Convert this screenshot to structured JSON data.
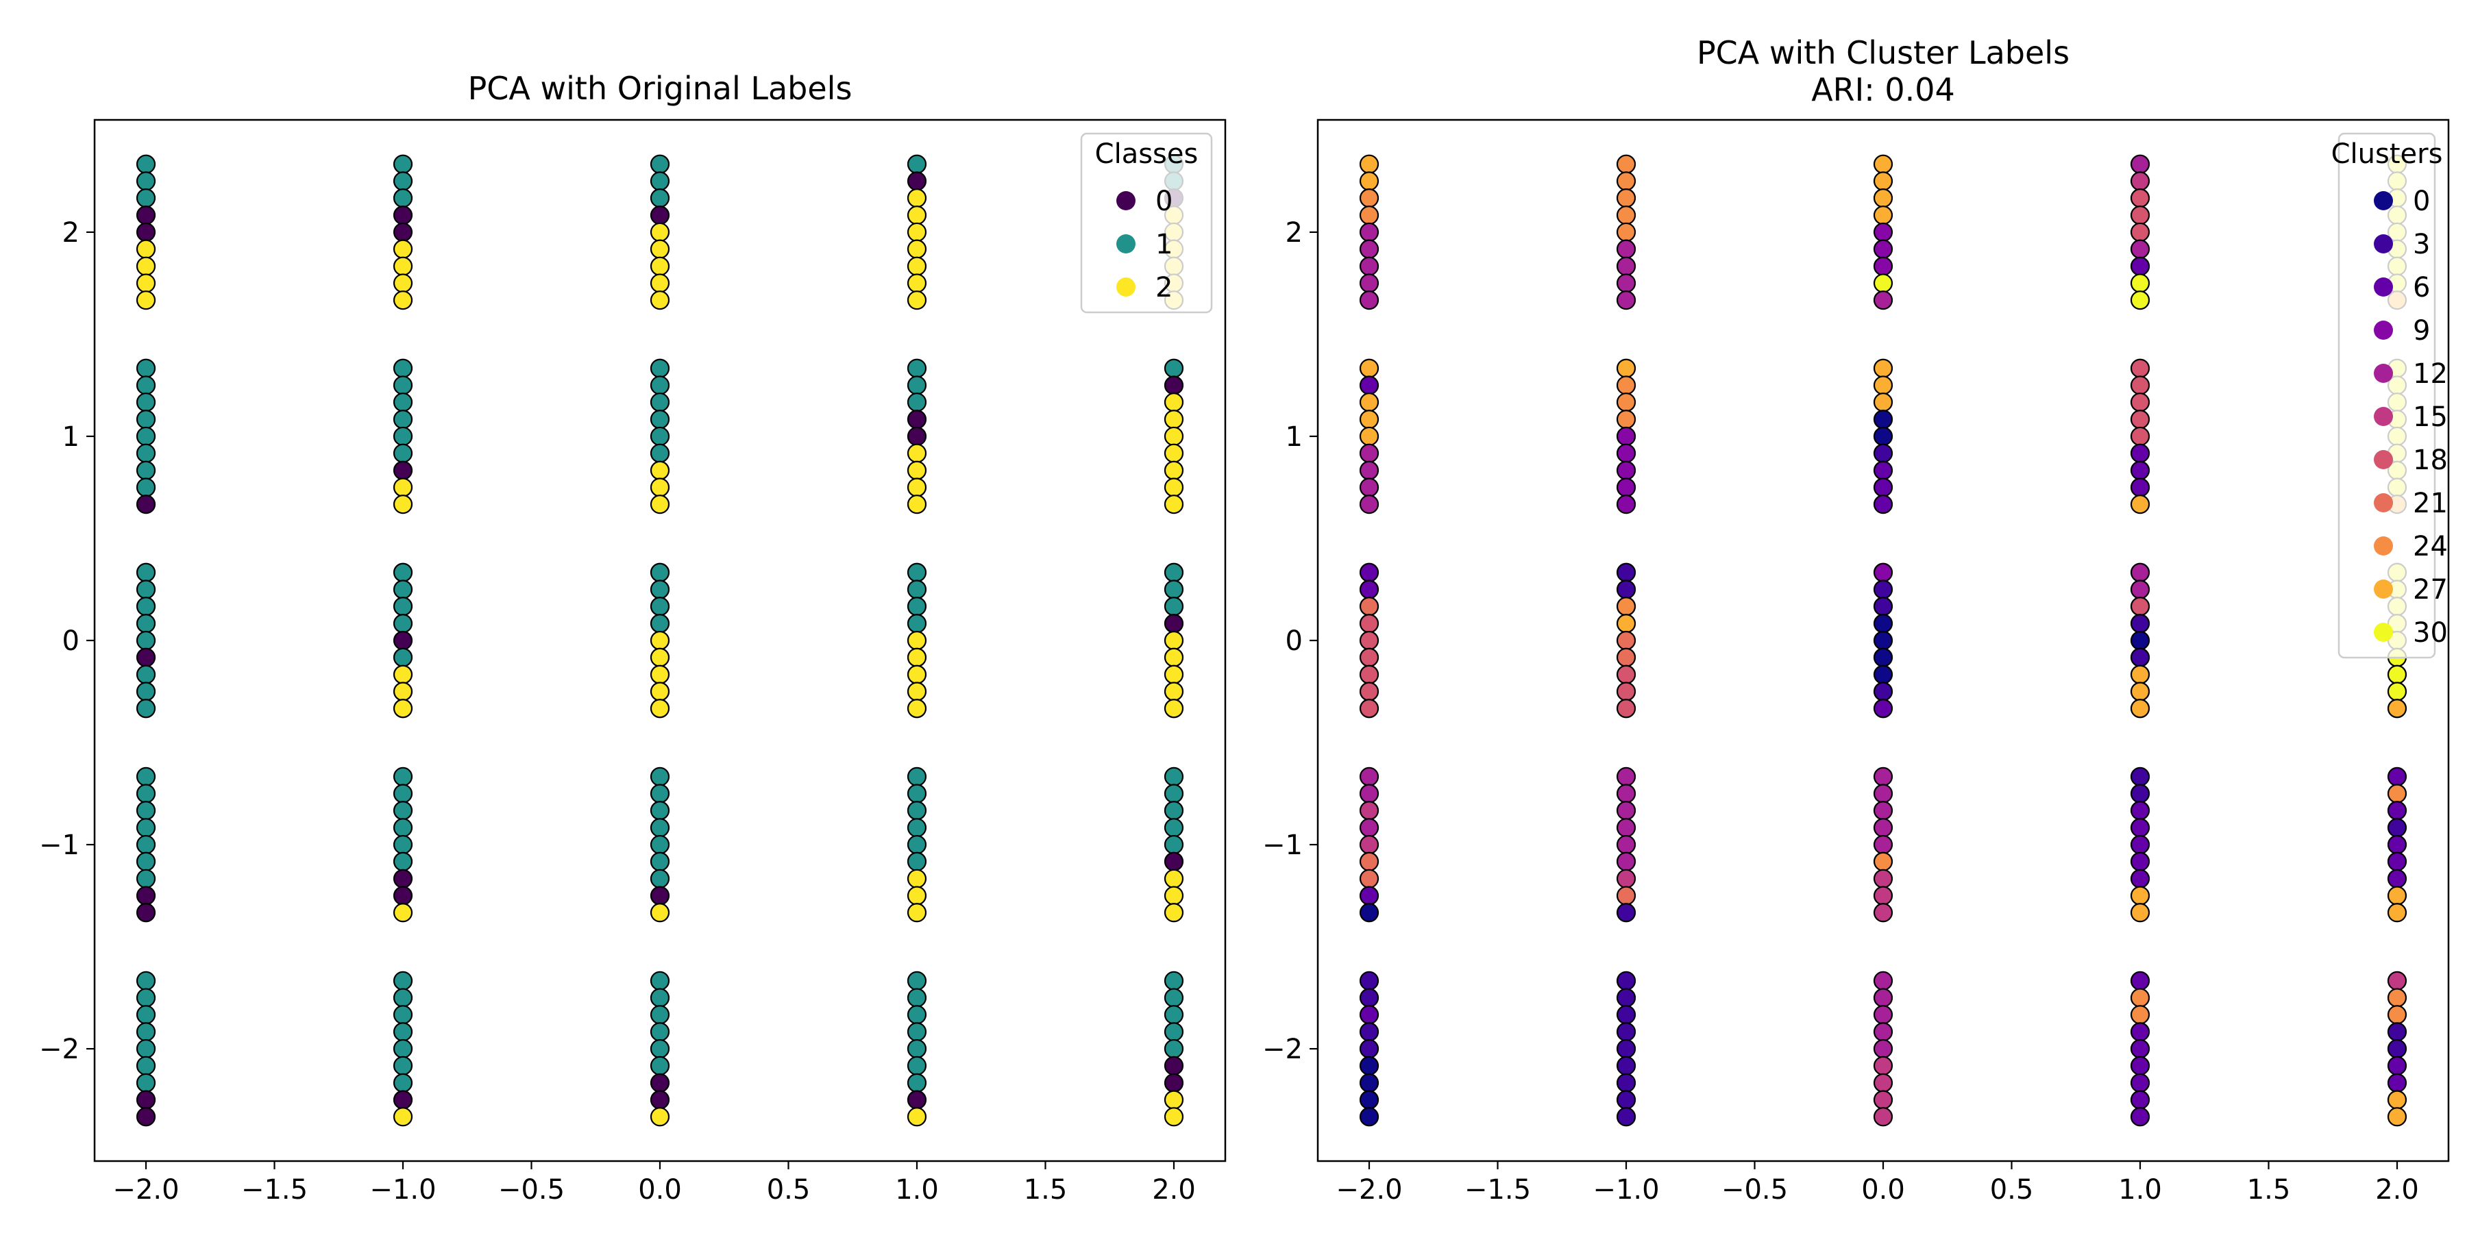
{
  "chart_data": [
    {
      "type": "scatter",
      "title": "PCA with Original Labels",
      "xlim": [
        -2.2,
        2.2
      ],
      "ylim": [
        -2.55,
        2.55
      ],
      "xticks": [
        -2.0,
        -1.5,
        -1.0,
        -0.5,
        0.0,
        0.5,
        1.0,
        1.5,
        2.0
      ],
      "xtick_labels": [
        "−2.0",
        "−1.5",
        "−1.0",
        "−0.5",
        "0.0",
        "0.5",
        "1.0",
        "1.5",
        "2.0"
      ],
      "yticks": [
        -2,
        -1,
        0,
        1,
        2
      ],
      "ytick_labels": [
        "−2",
        "−1",
        "0",
        "1",
        "2"
      ],
      "grid": false,
      "legend": {
        "title": "Classes",
        "placement": "top-right",
        "entries": [
          {
            "label": "0",
            "color": "#440154"
          },
          {
            "label": "1",
            "color": "#21918c"
          },
          {
            "label": "2",
            "color": "#fde725"
          }
        ]
      },
      "column_x": [
        -2.0,
        -1.0,
        0.0,
        1.0,
        2.0
      ],
      "group_centers": [
        -2.0,
        -1.0,
        0.0,
        1.0,
        2.0
      ],
      "group_offsets": [
        -0.333,
        -0.25,
        -0.167,
        -0.083,
        0.0,
        0.083,
        0.167,
        0.25,
        0.333
      ],
      "series_grid_note": "points[col][group] lists class of each point from top (y = center + 0.333) to bottom (y = center - 0.333)",
      "points": [
        [
          [
            1,
            1,
            1,
            1,
            1,
            1,
            1,
            0,
            0
          ],
          [
            1,
            1,
            1,
            1,
            1,
            1,
            1,
            0,
            0
          ],
          [
            1,
            1,
            1,
            1,
            1,
            0,
            1,
            1,
            1
          ],
          [
            1,
            1,
            1,
            1,
            1,
            1,
            1,
            1,
            0
          ],
          [
            1,
            1,
            1,
            0,
            0,
            2,
            2,
            2,
            2
          ]
        ],
        [
          [
            1,
            1,
            1,
            1,
            1,
            1,
            1,
            0,
            2
          ],
          [
            1,
            1,
            1,
            1,
            1,
            1,
            0,
            0,
            2
          ],
          [
            1,
            1,
            1,
            1,
            0,
            1,
            2,
            2,
            2
          ],
          [
            1,
            1,
            1,
            1,
            1,
            1,
            0,
            2,
            2
          ],
          [
            1,
            1,
            1,
            0,
            0,
            2,
            2,
            2,
            2
          ]
        ],
        [
          [
            1,
            1,
            1,
            1,
            1,
            1,
            0,
            0,
            2
          ],
          [
            1,
            1,
            1,
            1,
            1,
            1,
            1,
            0,
            2
          ],
          [
            1,
            1,
            1,
            1,
            2,
            2,
            2,
            2,
            2
          ],
          [
            1,
            1,
            1,
            1,
            1,
            1,
            2,
            2,
            2
          ],
          [
            1,
            1,
            1,
            0,
            2,
            2,
            2,
            2,
            2
          ]
        ],
        [
          [
            1,
            1,
            1,
            1,
            1,
            1,
            1,
            0,
            2
          ],
          [
            1,
            1,
            1,
            1,
            1,
            1,
            2,
            2,
            2
          ],
          [
            1,
            1,
            1,
            1,
            2,
            2,
            2,
            2,
            2
          ],
          [
            1,
            1,
            1,
            0,
            0,
            2,
            2,
            2,
            2
          ],
          [
            1,
            0,
            2,
            2,
            2,
            2,
            2,
            2,
            2
          ]
        ],
        [
          [
            1,
            1,
            1,
            1,
            1,
            0,
            0,
            2,
            2
          ],
          [
            1,
            1,
            1,
            1,
            1,
            0,
            2,
            2,
            2
          ],
          [
            1,
            1,
            1,
            0,
            2,
            2,
            2,
            2,
            2
          ],
          [
            1,
            0,
            2,
            2,
            2,
            2,
            2,
            2,
            2
          ],
          [
            1,
            1,
            0,
            2,
            2,
            2,
            2,
            2,
            2
          ]
        ]
      ]
    },
    {
      "type": "scatter",
      "title": "PCA with Cluster Labels",
      "subtitle": "ARI: 0.04",
      "xlim": [
        -2.2,
        2.2
      ],
      "ylim": [
        -2.55,
        2.55
      ],
      "xticks": [
        -2.0,
        -1.5,
        -1.0,
        -0.5,
        0.0,
        0.5,
        1.0,
        1.5,
        2.0
      ],
      "xtick_labels": [
        "−2.0",
        "−1.5",
        "−1.0",
        "−0.5",
        "0.0",
        "0.5",
        "1.0",
        "1.5",
        "2.0"
      ],
      "yticks": [
        -2,
        -1,
        0,
        1,
        2
      ],
      "ytick_labels": [
        "−2",
        "−1",
        "0",
        "1",
        "2"
      ],
      "grid": false,
      "legend": {
        "title": "Clusters",
        "placement": "top-right",
        "entries": [
          {
            "label": "0",
            "color": "#0d0887"
          },
          {
            "label": "3",
            "color": "#3e049c"
          },
          {
            "label": "6",
            "color": "#6300a7"
          },
          {
            "label": "9",
            "color": "#8606a6"
          },
          {
            "label": "12",
            "color": "#a62098"
          },
          {
            "label": "15",
            "color": "#c03a83"
          },
          {
            "label": "18",
            "color": "#d5546e"
          },
          {
            "label": "21",
            "color": "#e76f5a"
          },
          {
            "label": "24",
            "color": "#f68d45"
          },
          {
            "label": "27",
            "color": "#fcae32"
          },
          {
            "label": "30",
            "color": "#f0f921"
          }
        ]
      },
      "column_x": [
        -2.0,
        -1.0,
        0.0,
        1.0,
        2.0
      ],
      "group_centers": [
        -2.0,
        -1.0,
        0.0,
        1.0,
        2.0
      ],
      "group_offsets": [
        -0.333,
        -0.25,
        -0.167,
        -0.083,
        0.0,
        0.083,
        0.167,
        0.25,
        0.333
      ],
      "series_grid_note": "points[col][group] lists cluster id of each point from top to bottom",
      "points": [
        [
          [
            3,
            3,
            6,
            3,
            3,
            0,
            0,
            0,
            0
          ],
          [
            12,
            12,
            15,
            12,
            15,
            21,
            21,
            6,
            0
          ],
          [
            6,
            6,
            21,
            18,
            18,
            18,
            18,
            18,
            18
          ],
          [
            27,
            6,
            27,
            27,
            27,
            12,
            12,
            12,
            12
          ],
          [
            27,
            27,
            24,
            24,
            12,
            12,
            12,
            12,
            12
          ]
        ],
        [
          [
            3,
            3,
            3,
            3,
            3,
            3,
            3,
            3,
            3
          ],
          [
            12,
            12,
            12,
            12,
            12,
            12,
            15,
            21,
            3
          ],
          [
            3,
            3,
            24,
            27,
            21,
            21,
            18,
            18,
            18
          ],
          [
            27,
            24,
            24,
            24,
            9,
            9,
            9,
            9,
            9
          ],
          [
            24,
            24,
            24,
            24,
            24,
            12,
            12,
            12,
            12
          ]
        ],
        [
          [
            12,
            12,
            12,
            12,
            12,
            15,
            15,
            15,
            15
          ],
          [
            12,
            12,
            12,
            12,
            12,
            24,
            15,
            15,
            15
          ],
          [
            9,
            3,
            3,
            0,
            0,
            0,
            0,
            3,
            6
          ],
          [
            27,
            27,
            27,
            0,
            0,
            3,
            6,
            6,
            6
          ],
          [
            27,
            27,
            27,
            27,
            9,
            9,
            9,
            30,
            12
          ]
        ],
        [
          [
            6,
            24,
            24,
            6,
            6,
            6,
            6,
            6,
            6
          ],
          [
            3,
            3,
            6,
            6,
            6,
            6,
            6,
            27,
            27
          ],
          [
            12,
            12,
            18,
            3,
            0,
            3,
            27,
            27,
            27
          ],
          [
            18,
            18,
            18,
            18,
            18,
            6,
            6,
            6,
            27
          ],
          [
            12,
            15,
            18,
            18,
            18,
            12,
            6,
            30,
            30
          ]
        ],
        [
          [
            15,
            24,
            24,
            3,
            3,
            6,
            6,
            27,
            27
          ],
          [
            6,
            24,
            6,
            3,
            6,
            6,
            6,
            27,
            27
          ],
          [
            30,
            30,
            30,
            30,
            30,
            30,
            30,
            30,
            27
          ],
          [
            30,
            30,
            30,
            30,
            30,
            30,
            30,
            30,
            27
          ],
          [
            30,
            30,
            30,
            30,
            30,
            30,
            30,
            30,
            27
          ]
        ]
      ]
    }
  ]
}
